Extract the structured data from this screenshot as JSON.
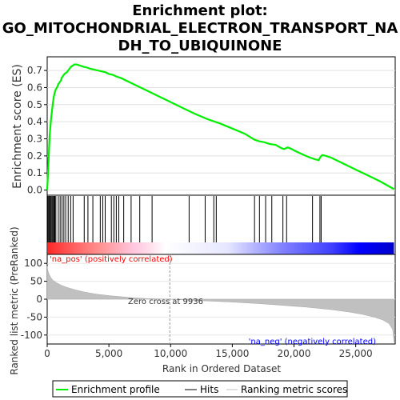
{
  "chart_data": [
    {
      "type": "line",
      "title_lines": [
        "Enrichment plot:",
        "GO_MITOCHONDRIAL_ELECTRON_TRANSPORT_NA",
        "DH_TO_UBIQUINONE"
      ],
      "ylabel": "Enrichment score (ES)",
      "ylim": [
        -0.03,
        0.78
      ],
      "xlim": [
        0,
        28200
      ],
      "yticks": [
        "0.0",
        "0.1",
        "0.2",
        "0.3",
        "0.4",
        "0.5",
        "0.6",
        "0.7"
      ],
      "series": [
        {
          "name": "Enrichment profile",
          "color": "#00ee00",
          "x": [
            0,
            30,
            80,
            120,
            160,
            200,
            260,
            320,
            380,
            450,
            520,
            600,
            700,
            800,
            900,
            1000,
            1100,
            1200,
            1300,
            1400,
            1500,
            1600,
            1700,
            1800,
            1900,
            2000,
            2100,
            2200,
            2400,
            2600,
            2800,
            3000,
            3100,
            3300,
            3500,
            3800,
            4100,
            4400,
            4700,
            5000,
            5300,
            5600,
            6000,
            7000,
            8000,
            9000,
            10000,
            11000,
            12000,
            13000,
            14000,
            15000,
            16000,
            16800,
            17200,
            17600,
            18000,
            18500,
            19000,
            19200,
            19500,
            19800,
            20200,
            20800,
            21300,
            21700,
            22000,
            22150,
            22300,
            22600,
            23000,
            24000,
            25000,
            26000,
            27000,
            28100
          ],
          "y": [
            0.0,
            0.05,
            0.12,
            0.19,
            0.26,
            0.32,
            0.37,
            0.42,
            0.46,
            0.5,
            0.54,
            0.57,
            0.59,
            0.6,
            0.62,
            0.63,
            0.64,
            0.66,
            0.67,
            0.68,
            0.685,
            0.69,
            0.7,
            0.71,
            0.72,
            0.725,
            0.73,
            0.735,
            0.735,
            0.73,
            0.725,
            0.72,
            0.72,
            0.715,
            0.71,
            0.705,
            0.7,
            0.695,
            0.69,
            0.68,
            0.675,
            0.665,
            0.655,
            0.62,
            0.585,
            0.55,
            0.515,
            0.48,
            0.445,
            0.415,
            0.39,
            0.36,
            0.33,
            0.295,
            0.285,
            0.28,
            0.27,
            0.265,
            0.245,
            0.24,
            0.25,
            0.24,
            0.225,
            0.205,
            0.19,
            0.18,
            0.175,
            0.195,
            0.205,
            0.2,
            0.19,
            0.155,
            0.12,
            0.085,
            0.05,
            0.005
          ]
        }
      ]
    },
    {
      "type": "hits",
      "xlim": [
        0,
        28200
      ],
      "hits": [
        50,
        120,
        180,
        250,
        320,
        400,
        470,
        550,
        620,
        700,
        900,
        1050,
        1200,
        1350,
        1500,
        1700,
        1900,
        2100,
        3000,
        3300,
        3700,
        4300,
        4500,
        4700,
        5200,
        5400,
        5600,
        5800,
        6200,
        6800,
        7500,
        8500,
        11500,
        12800,
        13500,
        13700,
        16800,
        17200,
        17700,
        18200,
        19100,
        19400,
        21500,
        22100,
        22200
      ],
      "gradient_colors": [
        "#ff0000",
        "#ffffff",
        "#0000ff"
      ]
    },
    {
      "type": "area",
      "ylabel": "Ranked list metric (PreRanked)",
      "xlabel": "Rank in Ordered Dataset",
      "ylim": [
        -125,
        125
      ],
      "xlim": [
        0,
        28200
      ],
      "yticks": [
        100,
        50,
        0,
        -50,
        -100
      ],
      "xticks": [
        0,
        5000,
        10000,
        15000,
        20000,
        25000
      ],
      "xtick_labels": [
        "0",
        "5,000",
        "10,000",
        "15,000",
        "20,000",
        "25,000"
      ],
      "fill_color": "#c0c0c0",
      "x": [
        0,
        50,
        150,
        300,
        500,
        800,
        1200,
        1700,
        2300,
        3000,
        4000,
        5000,
        6000,
        7000,
        8000,
        9000,
        9936,
        11000,
        13000,
        15000,
        17000,
        19000,
        21000,
        23000,
        24500,
        25500,
        26500,
        27200,
        27700,
        28000,
        28100
      ],
      "values": [
        92,
        80,
        70,
        60,
        52,
        45,
        38,
        32,
        26,
        20,
        14,
        10,
        7,
        4,
        2,
        1,
        0,
        -2,
        -5,
        -8,
        -12,
        -17,
        -22,
        -29,
        -36,
        -42,
        -50,
        -58,
        -68,
        -85,
        -120
      ],
      "zero_cross_label": "Zero cross at 9936",
      "zero_cross_x": 9936,
      "pos_label": "'na_pos' (positively correlated)",
      "neg_label": "'na_neg' (negatively correlated)",
      "pos_color": "#ff0000",
      "neg_color": "#0000ff"
    }
  ],
  "legend": {
    "items": [
      {
        "label": "Enrichment profile",
        "color": "#00ee00",
        "kind": "line-thick"
      },
      {
        "label": "Hits",
        "color": "#000000",
        "kind": "line"
      },
      {
        "label": "Ranking metric scores",
        "color": "#c0c0c0",
        "kind": "line"
      }
    ]
  }
}
